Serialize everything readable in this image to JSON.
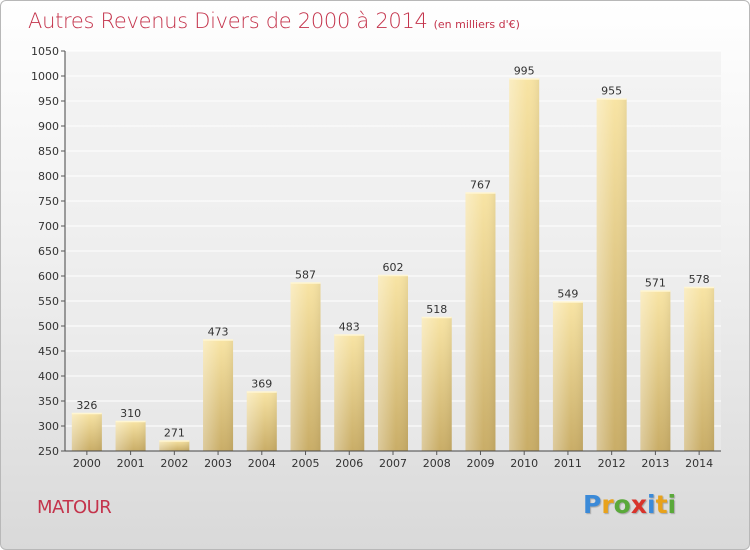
{
  "header": {
    "title": "Autres Revenus Divers de 2000 à 2014",
    "unit": "(en milliers d'€)"
  },
  "footer": {
    "commune": "MATOUR",
    "logo_letters": [
      "P",
      "r",
      "o",
      "x",
      "i",
      "t",
      "i"
    ],
    "logo_colors": [
      "#3b8ad8",
      "#e8a21b",
      "#5aa93a",
      "#d8332b",
      "#3b8ad8",
      "#e8a21b",
      "#5aa93a"
    ]
  },
  "chart_data": {
    "type": "bar",
    "categories": [
      "2000",
      "2001",
      "2002",
      "2003",
      "2004",
      "2005",
      "2006",
      "2007",
      "2008",
      "2009",
      "2010",
      "2011",
      "2012",
      "2013",
      "2014"
    ],
    "values": [
      326,
      310,
      271,
      473,
      369,
      587,
      483,
      602,
      518,
      767,
      995,
      549,
      955,
      571,
      578
    ],
    "data_labels": [
      "326",
      "310",
      "271",
      "473",
      "369",
      "587",
      "483",
      "602",
      "518",
      "767",
      "995",
      "549",
      "955",
      "571",
      "578"
    ],
    "ylim": [
      250,
      1050
    ],
    "yticks": [
      250,
      300,
      350,
      400,
      450,
      500,
      550,
      600,
      650,
      700,
      750,
      800,
      850,
      900,
      950,
      1000,
      1050
    ],
    "ytick_labels": [
      "250",
      "300",
      "350",
      "400",
      "450",
      "500",
      "550",
      "600",
      "650",
      "700",
      "750",
      "800",
      "850",
      "900",
      "950",
      "1000",
      "1050"
    ],
    "grid": true,
    "bar_color_light": "#f8e4a4",
    "bar_color_dark": "#c9ad67",
    "title_color": "#c4344c"
  }
}
